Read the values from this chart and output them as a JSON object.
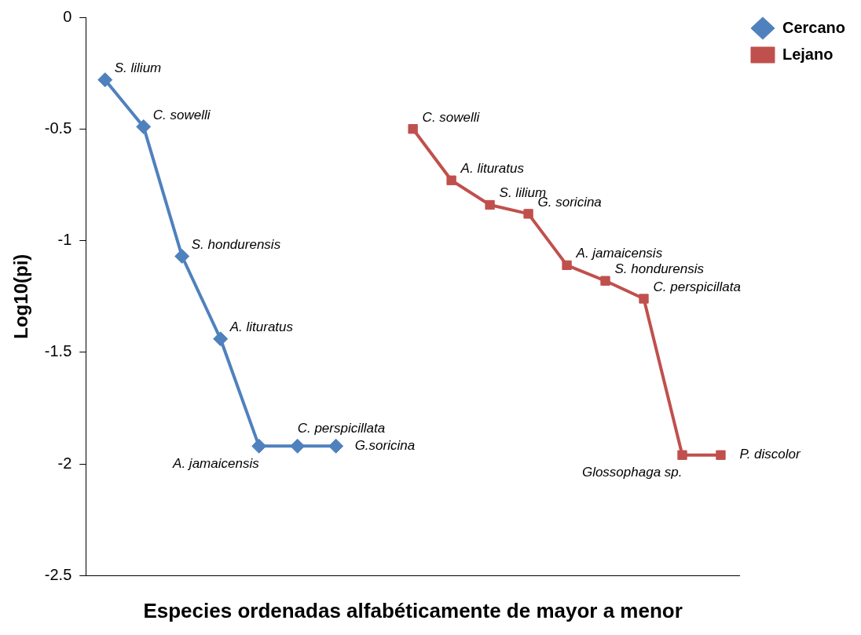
{
  "chart_data": {
    "type": "line",
    "xlabel": "Especies ordenadas alfabéticamente de mayor a menor",
    "ylabel": "Log10(pi)",
    "categories": [
      null,
      null,
      null,
      null,
      null,
      null,
      null,
      null,
      null,
      null,
      null,
      null,
      null,
      null,
      null,
      null,
      null
    ],
    "ylim": [
      -2.5,
      0
    ],
    "yticks": [
      0,
      -0.5,
      -1,
      -1.5,
      -2,
      -2.5
    ],
    "grid": false,
    "legend": "top right",
    "line_style": "solid",
    "series": [
      {
        "name": "Cercano",
        "color": "#4f81bd",
        "marker": "diamond",
        "values": [
          -0.28,
          -0.49,
          -1.07,
          -1.44,
          -1.92,
          -1.92,
          -1.92,
          null,
          null,
          null,
          null,
          null,
          null,
          null,
          null,
          null,
          null
        ],
        "value_labels": [
          "S. lilium",
          "C. sowelli",
          "S. hondurensis",
          "A. lituratus",
          "A. jamaicensis",
          "C. perspicillata",
          "G.soricina",
          null,
          null,
          null,
          null,
          null,
          null,
          null,
          null,
          null,
          null
        ]
      },
      {
        "name": "Lejano",
        "color": "#c0504d",
        "marker": "square",
        "values": [
          null,
          null,
          null,
          null,
          null,
          null,
          null,
          null,
          -0.5,
          -0.73,
          -0.84,
          -0.88,
          -1.11,
          -1.18,
          -1.26,
          -1.96,
          -1.96
        ],
        "value_labels": [
          null,
          null,
          null,
          null,
          null,
          null,
          null,
          null,
          "C. sowelli",
          "A. lituratus",
          "S. lilium",
          "G. soricina",
          "A. jamaicensis",
          "S. hondurensis",
          "C. perspicillata",
          "Glossophaga sp.",
          "P. discolor"
        ]
      }
    ]
  }
}
